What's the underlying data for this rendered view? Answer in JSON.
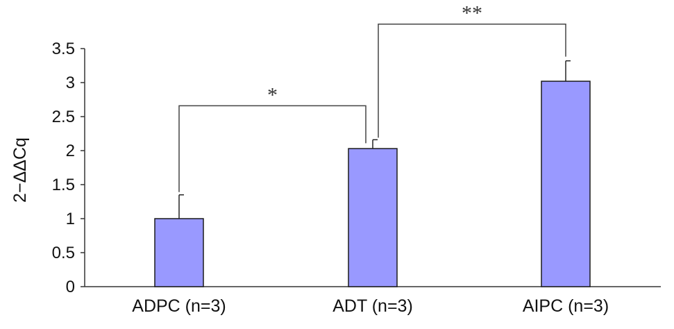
{
  "chart_data": {
    "type": "bar",
    "title": "",
    "xlabel": "",
    "ylabel": "2−ΔΔCq",
    "ylim": [
      0,
      3.5
    ],
    "yticks": [
      0,
      0.5,
      1,
      1.5,
      2,
      2.5,
      3,
      3.5
    ],
    "ytick_labels": [
      "0",
      "0.5",
      "1",
      "1.5",
      "2",
      "2.5",
      "3",
      "3.5"
    ],
    "categories": [
      "ADPC (n=3)",
      "ADT (n=3)",
      "AIPC (n=3)"
    ],
    "values": [
      1.0,
      2.03,
      3.02
    ],
    "error_upper": [
      0.35,
      0.13,
      0.3
    ],
    "bar_color": "#9999ff",
    "grid": false,
    "legend": "none",
    "significance": [
      {
        "from": 0,
        "to": 1,
        "label": "*",
        "y": 2.66
      },
      {
        "from": 1,
        "to": 2,
        "label": "**",
        "y": 3.86
      }
    ]
  }
}
